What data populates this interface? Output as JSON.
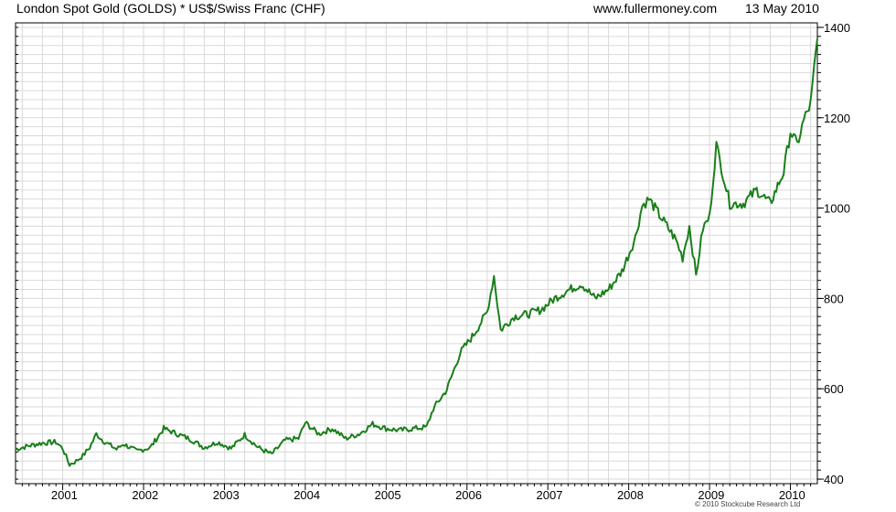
{
  "header": {
    "title": "London Spot Gold (GOLDS) * US$/Swiss Franc (CHF)",
    "website": "www.fullermoney.com",
    "date": "13 May 2010"
  },
  "footer": {
    "credit": "© 2010 Stockcube Research Ltd"
  },
  "colors": {
    "line": "#1a7f1a",
    "grid": "#d9d9d9",
    "axis": "#000000"
  },
  "chart_data": {
    "type": "line",
    "title": "London Spot Gold (GOLDS) * US$/Swiss Franc (CHF)",
    "xlabel": "",
    "ylabel": "",
    "xlim": [
      "2000-06",
      "2010-05"
    ],
    "ylim": [
      390,
      1410
    ],
    "grid": true,
    "y_axis_side": "right",
    "yticks": [
      400,
      600,
      800,
      1000,
      1200,
      1400
    ],
    "xticks": [
      "2001",
      "2002",
      "2003",
      "2004",
      "2005",
      "2006",
      "2007",
      "2008",
      "2009",
      "2010"
    ],
    "series": [
      {
        "x": [
          "2000-06",
          "2000-08",
          "2000-10",
          "2000-12",
          "2001-01",
          "2001-02",
          "2001-03",
          "2001-04",
          "2001-05",
          "2001-06",
          "2001-07",
          "2001-09",
          "2001-10",
          "2001-12",
          "2002-02",
          "2002-04",
          "2002-06",
          "2002-08",
          "2002-10",
          "2002-12",
          "2003-02",
          "2003-04",
          "2003-06",
          "2003-08",
          "2003-10",
          "2003-12",
          "2004-01",
          "2004-03",
          "2004-05",
          "2004-07",
          "2004-09",
          "2004-11",
          "2005-01",
          "2005-03",
          "2005-05",
          "2005-07",
          "2005-08",
          "2005-10",
          "2005-12",
          "2006-02",
          "2006-04",
          "2006-05",
          "2006-06",
          "2006-08",
          "2006-10",
          "2006-12",
          "2007-02",
          "2007-04",
          "2007-06",
          "2007-08",
          "2007-10",
          "2007-12",
          "2008-02",
          "2008-03",
          "2008-04",
          "2008-06",
          "2008-08",
          "2008-09",
          "2008-10",
          "2008-11",
          "2008-12",
          "2009-01",
          "2009-02",
          "2009-03",
          "2009-04",
          "2009-06",
          "2009-08",
          "2009-10",
          "2009-12",
          "2010-01",
          "2010-02",
          "2010-03",
          "2010-04",
          "2010-05"
        ],
        "values": [
          466,
          474,
          480,
          482,
          468,
          432,
          440,
          452,
          470,
          500,
          485,
          466,
          478,
          462,
          470,
          512,
          500,
          488,
          470,
          482,
          468,
          498,
          470,
          455,
          486,
          490,
          525,
          500,
          512,
          490,
          500,
          522,
          512,
          508,
          512,
          515,
          556,
          598,
          680,
          720,
          770,
          850,
          730,
          760,
          765,
          775,
          800,
          818,
          832,
          800,
          820,
          860,
          935,
          1005,
          1020,
          975,
          930,
          890,
          960,
          850,
          955,
          980,
          1140,
          1075,
          1010,
          1010,
          1040,
          1010,
          1080,
          1170,
          1140,
          1195,
          1230,
          1375
        ]
      }
    ]
  }
}
